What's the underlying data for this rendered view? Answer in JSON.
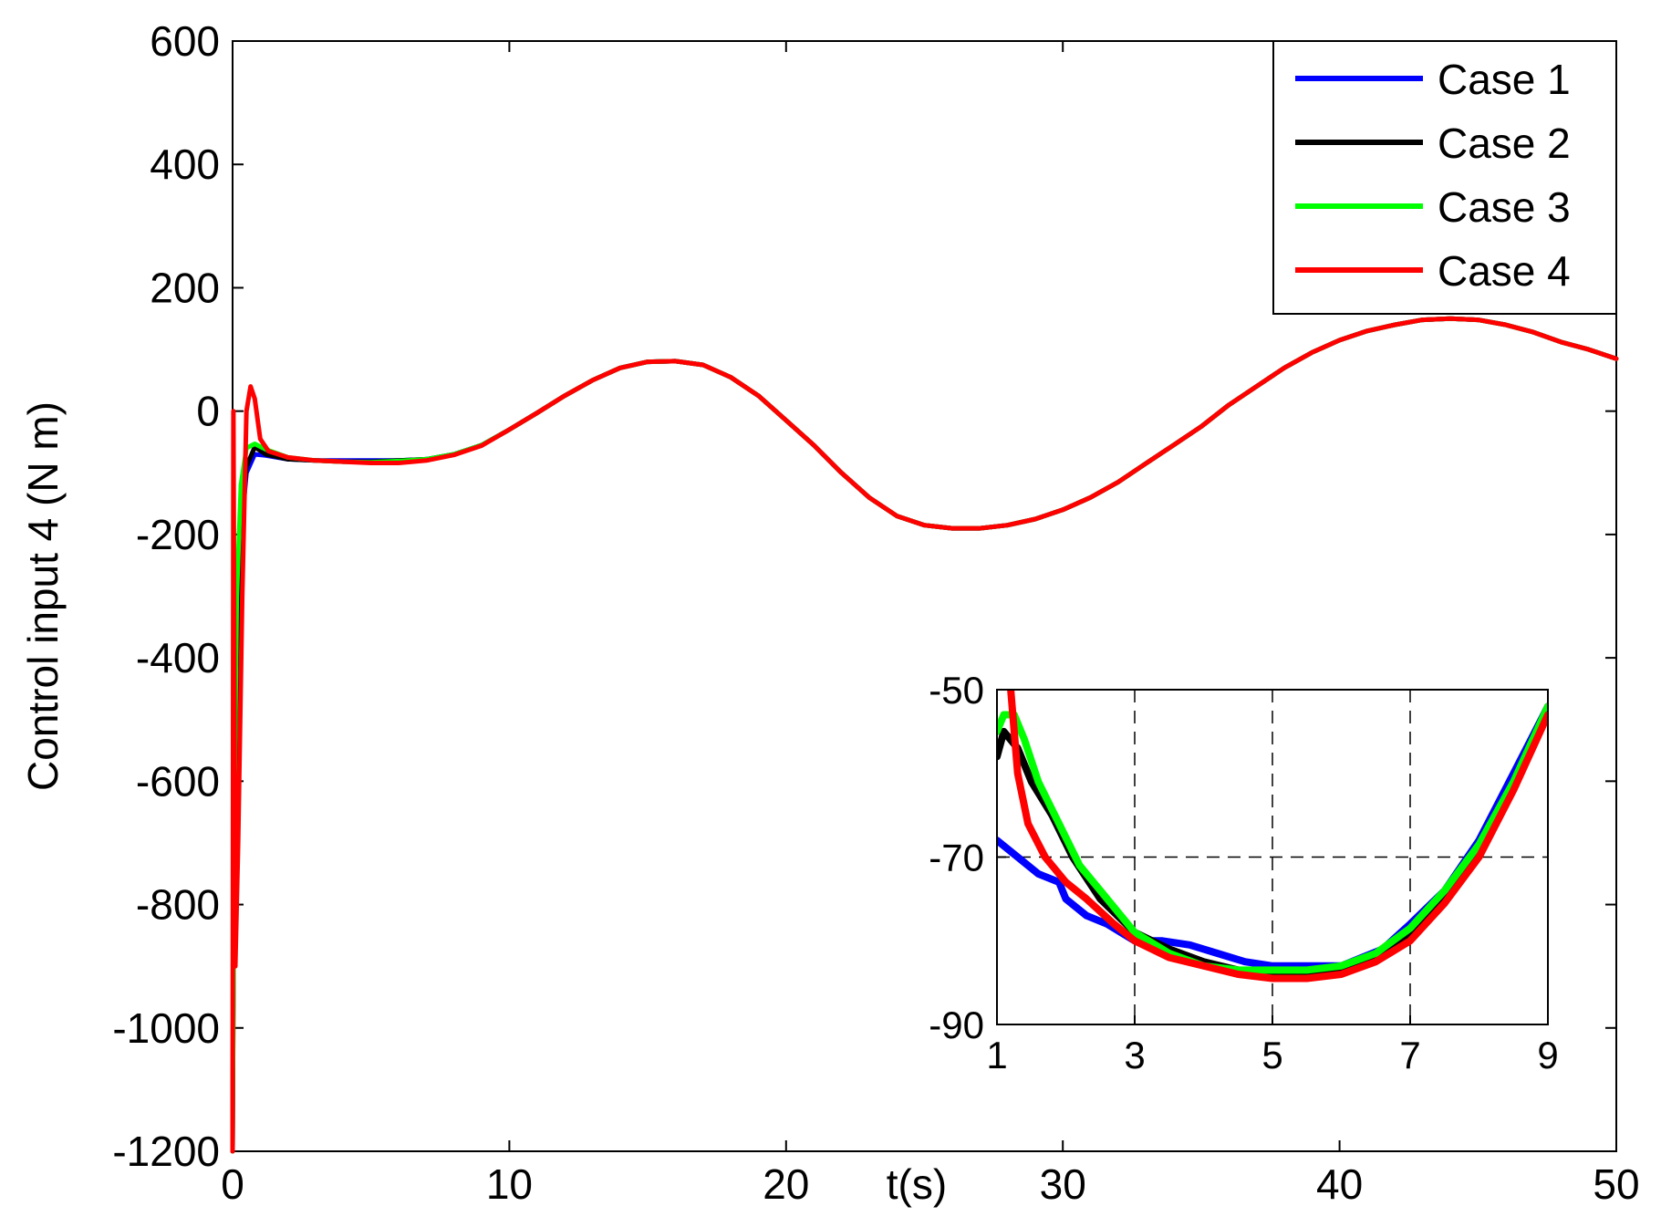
{
  "chart_data": [
    {
      "type": "line",
      "title": "",
      "xlabel": "t(s)",
      "ylabel": "Control input 4 (N m)",
      "xlim": [
        0,
        50
      ],
      "ylim": [
        -1200,
        600
      ],
      "xticks": [
        0,
        10,
        20,
        30,
        40,
        50
      ],
      "xtick_labels": [
        "0",
        "10",
        "20",
        "30",
        "40",
        "50"
      ],
      "yticks": [
        600,
        400,
        200,
        0,
        -200,
        -400,
        -600,
        -800,
        -1000,
        -1200
      ],
      "ytick_labels": [
        "600",
        "400",
        "200",
        "0",
        "-200",
        "-400",
        "-600",
        "-800",
        "-1000",
        "-1200"
      ],
      "grid": false,
      "legend_position": "top-right",
      "series": [
        {
          "name": "Case 1",
          "color": "#0000ff",
          "x": [
            0,
            0.05,
            0.15,
            0.3,
            0.5,
            0.8,
            1.2,
            2,
            3,
            4,
            5,
            6,
            7,
            8,
            9,
            10,
            11,
            12,
            13,
            14,
            15,
            16,
            17,
            18,
            19,
            20,
            21,
            22,
            23,
            24,
            25,
            26,
            27,
            28,
            29,
            30,
            31,
            32,
            33,
            34,
            35,
            36,
            37,
            38,
            39,
            40,
            41,
            42,
            43,
            44,
            45,
            46,
            47,
            48,
            49,
            50
          ],
          "y": [
            -1200,
            -600,
            -350,
            -200,
            -100,
            -70,
            -72,
            -78,
            -80,
            -80,
            -80,
            -80,
            -78,
            -70,
            -55,
            -30,
            -3,
            25,
            50,
            70,
            80,
            81,
            75,
            55,
            25,
            -15,
            -55,
            -100,
            -140,
            -170,
            -185,
            -190,
            -190,
            -185,
            -175,
            -160,
            -140,
            -115,
            -85,
            -55,
            -25,
            10,
            40,
            70,
            95,
            115,
            130,
            140,
            148,
            150,
            148,
            140,
            128,
            112,
            100,
            85
          ]
        },
        {
          "name": "Case 2",
          "color": "#000000",
          "x": [
            0,
            0.05,
            0.15,
            0.3,
            0.5,
            0.8,
            1.2,
            2,
            3,
            4,
            5,
            6,
            7,
            8,
            9,
            10,
            11,
            12,
            13,
            14,
            15,
            16,
            17,
            18,
            19,
            20,
            21,
            22,
            23,
            24,
            25,
            26,
            27,
            28,
            29,
            30,
            31,
            32,
            33,
            34,
            35,
            36,
            37,
            38,
            39,
            40,
            41,
            42,
            43,
            44,
            45,
            46,
            47,
            48,
            49,
            50
          ],
          "y": [
            -1200,
            -750,
            -400,
            -180,
            -90,
            -58,
            -70,
            -78,
            -80,
            -82,
            -82,
            -80,
            -78,
            -70,
            -55,
            -30,
            -3,
            25,
            50,
            70,
            80,
            81,
            75,
            55,
            25,
            -15,
            -55,
            -100,
            -140,
            -170,
            -185,
            -190,
            -190,
            -185,
            -175,
            -160,
            -140,
            -115,
            -85,
            -55,
            -25,
            10,
            40,
            70,
            95,
            115,
            130,
            140,
            148,
            150,
            148,
            140,
            128,
            112,
            100,
            85
          ]
        },
        {
          "name": "Case 3",
          "color": "#00ff00",
          "x": [
            0,
            0.05,
            0.15,
            0.3,
            0.5,
            0.8,
            1.2,
            2,
            3,
            4,
            5,
            6,
            7,
            8,
            9,
            10,
            11,
            12,
            13,
            14,
            15,
            16,
            17,
            18,
            19,
            20,
            21,
            22,
            23,
            24,
            25,
            26,
            27,
            28,
            29,
            30,
            31,
            32,
            33,
            34,
            35,
            36,
            37,
            38,
            39,
            40,
            41,
            42,
            43,
            44,
            45,
            46,
            47,
            48,
            49,
            50
          ],
          "y": [
            -1200,
            -700,
            -300,
            -120,
            -60,
            -53,
            -62,
            -75,
            -80,
            -82,
            -83,
            -81,
            -78,
            -70,
            -55,
            -30,
            -3,
            25,
            50,
            70,
            80,
            81,
            75,
            55,
            25,
            -15,
            -55,
            -100,
            -140,
            -170,
            -185,
            -190,
            -190,
            -185,
            -175,
            -160,
            -140,
            -115,
            -85,
            -55,
            -25,
            10,
            40,
            70,
            95,
            115,
            130,
            140,
            148,
            150,
            148,
            140,
            128,
            112,
            100,
            85
          ]
        },
        {
          "name": "Case 4",
          "color": "#ff0000",
          "x": [
            0,
            0.03,
            0.1,
            0.2,
            0.35,
            0.5,
            0.65,
            0.8,
            1.0,
            1.3,
            2,
            3,
            4,
            5,
            6,
            7,
            8,
            9,
            10,
            11,
            12,
            13,
            14,
            15,
            16,
            17,
            18,
            19,
            20,
            21,
            22,
            23,
            24,
            25,
            26,
            27,
            28,
            29,
            30,
            31,
            32,
            33,
            34,
            35,
            36,
            37,
            38,
            39,
            40,
            41,
            42,
            43,
            44,
            45,
            46,
            47,
            48,
            49,
            50
          ],
          "y": [
            -1200,
            0,
            -900,
            -700,
            -300,
            0,
            40,
            20,
            -45,
            -65,
            -75,
            -80,
            -82,
            -84,
            -84,
            -80,
            -71,
            -56,
            -30,
            -3,
            25,
            50,
            70,
            80,
            81,
            75,
            55,
            25,
            -15,
            -55,
            -100,
            -140,
            -170,
            -185,
            -190,
            -190,
            -185,
            -175,
            -160,
            -140,
            -115,
            -85,
            -55,
            -25,
            10,
            40,
            70,
            95,
            115,
            130,
            140,
            148,
            150,
            148,
            140,
            128,
            112,
            100,
            85
          ]
        }
      ]
    },
    {
      "type": "line",
      "title": "",
      "xlabel": "",
      "ylabel": "",
      "xlim": [
        1,
        9
      ],
      "ylim": [
        -90,
        -50
      ],
      "xticks": [
        1,
        3,
        5,
        7,
        9
      ],
      "xtick_labels": [
        "1",
        "3",
        "5",
        "7",
        "9"
      ],
      "yticks": [
        -50,
        -70,
        -90
      ],
      "ytick_labels": [
        "-50",
        "-70",
        "-90"
      ],
      "grid": true,
      "series": [
        {
          "name": "Case 1",
          "color": "#0000ff",
          "x": [
            1,
            1.3,
            1.6,
            1.9,
            2.0,
            2.3,
            2.6,
            3.0,
            3.4,
            3.8,
            4.2,
            4.6,
            5.0,
            5.5,
            6.0,
            6.3,
            6.6,
            7.0,
            7.5,
            8.0,
            8.5,
            9.0
          ],
          "y": [
            -68,
            -70,
            -72,
            -73,
            -75,
            -77,
            -78,
            -80,
            -80,
            -80.5,
            -81.5,
            -82.5,
            -83,
            -83,
            -83,
            -82,
            -81,
            -78,
            -74,
            -68,
            -60,
            -52
          ]
        },
        {
          "name": "Case 2",
          "color": "#000000",
          "x": [
            1,
            1.1,
            1.3,
            1.5,
            1.8,
            2.1,
            2.5,
            3.0,
            3.5,
            4.0,
            4.5,
            5.0,
            5.5,
            6.0,
            6.5,
            7.0,
            7.5,
            8.0,
            8.5,
            9.0
          ],
          "y": [
            -58,
            -55,
            -57,
            -61,
            -65,
            -70,
            -75,
            -79,
            -81,
            -82.5,
            -83.5,
            -84,
            -84,
            -83.5,
            -82,
            -79,
            -74.5,
            -69,
            -61,
            -52
          ]
        },
        {
          "name": "Case 3",
          "color": "#00ff00",
          "x": [
            1,
            1.1,
            1.25,
            1.4,
            1.6,
            1.9,
            2.2,
            2.5,
            3.0,
            3.5,
            4.0,
            4.5,
            5.0,
            5.5,
            6.0,
            6.5,
            7.0,
            7.5,
            8.0,
            8.5,
            9.0
          ],
          "y": [
            -55,
            -53,
            -53,
            -56,
            -61,
            -66,
            -71,
            -74,
            -79,
            -81.5,
            -83,
            -83.5,
            -83.5,
            -83.5,
            -83,
            -81.5,
            -78.5,
            -74,
            -68.5,
            -61,
            -52
          ]
        },
        {
          "name": "Case 4",
          "color": "#ff0000",
          "x": [
            1.2,
            1.3,
            1.45,
            1.7,
            2.0,
            2.3,
            2.7,
            3.0,
            3.5,
            4.0,
            4.5,
            5.0,
            5.5,
            6.0,
            6.5,
            7.0,
            7.5,
            8.0,
            8.5,
            9.0
          ],
          "y": [
            -50,
            -60,
            -66,
            -70,
            -73,
            -75,
            -78,
            -80,
            -82,
            -83,
            -84,
            -84.5,
            -84.5,
            -84,
            -82.5,
            -80,
            -75.5,
            -70,
            -62,
            -53
          ]
        }
      ]
    }
  ],
  "legend": [
    {
      "label": "Case 1",
      "color": "#0000ff"
    },
    {
      "label": "Case 2",
      "color": "#000000"
    },
    {
      "label": "Case 3",
      "color": "#00ff00"
    },
    {
      "label": "Case 4",
      "color": "#ff0000"
    }
  ]
}
